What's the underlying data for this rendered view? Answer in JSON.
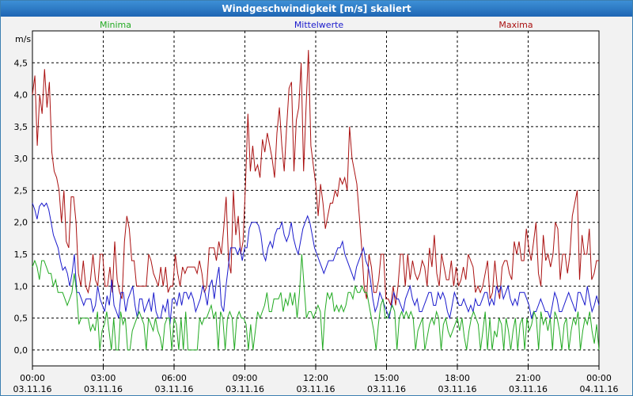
{
  "window": {
    "title": "Windgeschwindigkeit [m/s] skaliert"
  },
  "colors": {
    "min": "#22aa22",
    "avg": "#1a1acc",
    "max": "#aa1111",
    "grid": "#000000"
  },
  "chart_data": {
    "type": "line",
    "title": "Windgeschwindigkeit [m/s] skaliert",
    "ylabel": "m/s",
    "ylim": [
      -0.25,
      5.0
    ],
    "yticks": [
      "0,0",
      "0,5",
      "1,0",
      "1,5",
      "2,0",
      "2,5",
      "3,0",
      "3,5",
      "4,0",
      "4,5"
    ],
    "ytick_values": [
      0,
      0.5,
      1.0,
      1.5,
      2.0,
      2.5,
      3.0,
      3.5,
      4.0,
      4.5
    ],
    "xlim": [
      0,
      24
    ],
    "xticks": [
      {
        "time": "00:00",
        "date": "03.11.16"
      },
      {
        "time": "03:00",
        "date": "03.11.16"
      },
      {
        "time": "06:00",
        "date": "03.11.16"
      },
      {
        "time": "09:00",
        "date": "03.11.16"
      },
      {
        "time": "12:00",
        "date": "03.11.16"
      },
      {
        "time": "15:00",
        "date": "03.11.16"
      },
      {
        "time": "18:00",
        "date": "03.11.16"
      },
      {
        "time": "21:00",
        "date": "03.11.16"
      },
      {
        "time": "00:00",
        "date": "04.11.16"
      }
    ],
    "legend": {
      "min": "Minima",
      "avg": "Mittelwerte",
      "max": "Maxima"
    },
    "series": [
      {
        "name": "Maxima",
        "key": "max",
        "values": [
          4.0,
          4.3,
          3.2,
          4.0,
          3.7,
          4.4,
          3.8,
          4.2,
          3.1,
          2.8,
          2.7,
          2.5,
          2.0,
          2.5,
          1.7,
          1.6,
          2.4,
          2.4,
          2.0,
          1.2,
          1.0,
          1.4,
          1.0,
          0.9,
          1.1,
          1.5,
          1.1,
          1.0,
          1.5,
          1.5,
          1.0,
          1.0,
          1.3,
          0.9,
          1.7,
          1.1,
          0.9,
          0.8,
          1.7,
          2.1,
          1.9,
          1.4,
          1.4,
          1.0,
          1.0,
          1.0,
          1.0,
          1.0,
          1.5,
          1.4,
          1.2,
          1.1,
          1.0,
          1.3,
          1.0,
          1.3,
          0.9,
          1.0,
          1.0,
          1.5,
          1.2,
          1.0,
          1.3,
          1.2,
          1.3,
          1.3,
          1.3,
          1.3,
          1.2,
          1.4,
          1.2,
          0.9,
          1.0,
          1.6,
          1.6,
          1.6,
          1.4,
          1.7,
          1.5,
          1.9,
          2.4,
          1.4,
          1.2,
          2.5,
          1.8,
          2.1,
          1.5,
          1.7,
          2.6,
          3.7,
          2.8,
          3.2,
          2.8,
          2.9,
          2.7,
          3.3,
          3.1,
          3.4,
          3.2,
          3.0,
          2.7,
          3.4,
          3.8,
          3.2,
          2.8,
          3.5,
          4.1,
          4.2,
          2.8,
          3.6,
          3.8,
          4.5,
          2.8,
          3.8,
          4.7,
          3.2,
          2.9,
          2.6,
          2.1,
          2.6,
          2.3,
          1.9,
          2.1,
          2.3,
          2.3,
          2.5,
          2.4,
          2.7,
          2.6,
          2.7,
          2.5,
          3.5,
          3.0,
          2.8,
          2.6,
          2.1,
          1.6,
          1.0,
          0.8,
          1.5,
          1.3,
          0.9,
          0.9,
          1.1,
          1.5,
          1.5,
          0.8,
          0.8,
          0.7,
          1.0,
          0.7,
          1.0,
          1.5,
          1.5,
          1.0,
          1.5,
          1.1,
          1.4,
          1.2,
          1.1,
          1.2,
          1.4,
          1.3,
          1.0,
          1.6,
          1.3,
          1.8,
          1.2,
          1.0,
          1.5,
          1.3,
          1.1,
          1.1,
          1.4,
          1.0,
          1.3,
          1.0,
          1.1,
          1.3,
          1.1,
          1.5,
          1.4,
          1.3,
          0.9,
          1.0,
          0.9,
          1.0,
          1.2,
          1.4,
          0.8,
          0.9,
          1.4,
          1.0,
          0.8,
          1.3,
          1.4,
          1.4,
          1.2,
          1.1,
          1.7,
          1.5,
          1.7,
          1.4,
          1.4,
          1.9,
          1.6,
          1.4,
          1.7,
          2.0,
          1.2,
          1.0,
          1.8,
          1.4,
          1.5,
          1.3,
          1.5,
          2.0,
          1.9,
          1.1,
          1.5,
          1.5,
          1.2,
          1.5,
          2.1,
          2.3,
          2.5,
          1.1,
          1.8,
          1.5,
          1.5,
          1.9,
          1.1,
          1.2,
          1.4,
          1.4
        ]
      },
      {
        "name": "Mittelwerte",
        "key": "avg",
        "values": [
          2.3,
          2.2,
          2.05,
          2.25,
          2.3,
          2.25,
          2.3,
          2.2,
          2.0,
          1.8,
          1.7,
          1.6,
          1.4,
          1.25,
          1.3,
          1.2,
          1.0,
          1.2,
          1.5,
          0.9,
          0.9,
          0.8,
          0.7,
          0.8,
          0.8,
          0.8,
          0.6,
          0.7,
          1.0,
          0.8,
          0.7,
          0.6,
          0.85,
          0.7,
          1.1,
          0.7,
          0.6,
          0.5,
          0.9,
          0.9,
          0.6,
          0.8,
          0.9,
          1.0,
          0.7,
          0.5,
          0.8,
          0.8,
          0.6,
          0.7,
          0.8,
          0.6,
          0.9,
          0.6,
          0.5,
          0.5,
          0.7,
          0.6,
          0.8,
          0.4,
          0.8,
          0.8,
          0.7,
          0.9,
          0.7,
          0.9,
          0.9,
          0.8,
          0.9,
          0.8,
          0.6,
          0.7,
          0.8,
          1.0,
          0.9,
          0.7,
          1.0,
          1.1,
          0.8,
          1.1,
          1.3,
          0.7,
          0.6,
          1.0,
          1.3,
          1.6,
          1.6,
          1.6,
          1.5,
          1.6,
          1.4,
          1.6,
          1.6,
          1.9,
          2.0,
          2.0,
          2.0,
          1.95,
          1.8,
          1.5,
          1.4,
          1.6,
          1.7,
          1.6,
          1.8,
          1.9,
          1.9,
          2.0,
          1.8,
          1.7,
          1.8,
          2.0,
          1.75,
          1.6,
          1.5,
          1.7,
          1.9,
          2.0,
          2.1,
          2.0,
          1.8,
          1.6,
          1.5,
          1.4,
          1.3,
          1.2,
          1.3,
          1.4,
          1.4,
          1.4,
          1.5,
          1.6,
          1.6,
          1.7,
          1.5,
          1.4,
          1.3,
          1.2,
          1.1,
          1.3,
          1.4,
          1.5,
          1.6,
          1.4,
          1.3,
          1.1,
          0.8,
          0.6,
          0.7,
          0.9,
          0.8,
          0.7,
          0.6,
          0.5,
          0.7,
          0.9,
          0.8,
          0.8,
          0.7,
          0.6,
          0.8,
          0.9,
          1.0,
          0.8,
          0.7,
          0.8,
          0.6,
          0.6,
          0.7,
          0.8,
          0.9,
          0.9,
          0.7,
          0.7,
          0.9,
          0.8,
          0.9,
          0.8,
          0.6,
          0.5,
          0.7,
          0.9,
          0.8,
          0.7,
          0.7,
          0.8,
          0.7,
          0.6,
          0.7,
          0.6,
          0.8,
          0.7,
          0.7,
          0.8,
          0.9,
          0.9,
          0.7,
          0.8,
          0.7,
          1.0,
          0.9,
          1.0,
          0.8,
          0.9,
          1.0,
          0.8,
          0.7,
          0.8,
          0.7,
          0.9,
          0.9,
          0.9,
          0.8,
          0.7,
          0.5,
          0.6,
          0.6,
          0.7,
          0.8,
          0.7,
          0.6,
          0.6,
          0.5,
          0.7,
          0.9,
          0.8,
          0.6,
          0.6,
          0.7,
          0.8,
          0.9,
          0.8,
          0.7,
          0.6,
          0.9,
          0.9,
          0.8,
          0.7,
          1.0,
          0.8,
          0.6,
          0.7,
          0.85,
          0.7
        ]
      },
      {
        "name": "Minima",
        "key": "min",
        "values": [
          1.3,
          1.4,
          1.3,
          1.1,
          1.4,
          1.4,
          1.3,
          1.2,
          1.2,
          1.0,
          1.1,
          0.9,
          0.9,
          0.9,
          0.8,
          0.7,
          0.8,
          0.9,
          1.2,
          0.9,
          0.4,
          0.5,
          0.5,
          0.5,
          0.5,
          0.3,
          0.4,
          0.3,
          0.6,
          0.0,
          0.3,
          0.4,
          0.6,
          0.3,
          0.0,
          0.5,
          0.0,
          0.0,
          0.6,
          0.4,
          0.5,
          0.0,
          0.0,
          0.3,
          0.4,
          0.5,
          0.6,
          0.5,
          0.4,
          0.0,
          0.5,
          0.4,
          0.3,
          0.5,
          0.3,
          0.2,
          0.0,
          0.4,
          0.5,
          0.5,
          0.0,
          0.5,
          0.4,
          0.0,
          0.5,
          0.0,
          0.6,
          0.0,
          0.0,
          0.0,
          0.0,
          0.0,
          0.5,
          0.4,
          0.5,
          0.5,
          0.6,
          0.7,
          0.5,
          0.6,
          0.0,
          0.6,
          0.5,
          0.0,
          0.5,
          0.6,
          0.5,
          0.0,
          0.5,
          0.6,
          0.5,
          0.5,
          0.4,
          0.0,
          0.4,
          0.0,
          0.3,
          0.6,
          0.5,
          0.6,
          0.7,
          0.9,
          0.6,
          0.6,
          0.8,
          0.8,
          0.8,
          0.9,
          0.6,
          0.8,
          0.7,
          0.9,
          0.7,
          0.9,
          0.5,
          0.9,
          1.5,
          1.0,
          0.5,
          0.6,
          0.6,
          0.5,
          0.6,
          0.7,
          0.6,
          0.0,
          0.6,
          0.9,
          0.8,
          0.9,
          0.6,
          0.7,
          0.6,
          0.7,
          0.6,
          0.7,
          0.9,
          0.9,
          0.8,
          1.0,
          0.9,
          0.9,
          1.0,
          0.9,
          0.9,
          0.7,
          0.5,
          0.3,
          0.0,
          0.4,
          0.7,
          0.8,
          0.5,
          0.5,
          0.6,
          0.7,
          0.6,
          0.0,
          0.5,
          0.6,
          0.5,
          0.6,
          0.5,
          0.6,
          0.5,
          0.0,
          0.3,
          0.4,
          0.5,
          0.0,
          0.2,
          0.4,
          0.5,
          0.4,
          0.6,
          0.5,
          0.0,
          0.4,
          0.5,
          0.3,
          0.2,
          0.3,
          0.4,
          0.5,
          0.3,
          0.5,
          0.2,
          0.0,
          0.3,
          0.5,
          0.6,
          0.5,
          0.4,
          0.0,
          0.3,
          0.6,
          0.0,
          0.5,
          0.0,
          0.3,
          0.2,
          0.5,
          0.4,
          0.0,
          0.5,
          0.3,
          0.0,
          0.3,
          0.5,
          0.0,
          0.4,
          0.5,
          0.0,
          0.5,
          0.3,
          0.4,
          0.6,
          0.5,
          0.0,
          0.6,
          0.4,
          0.5,
          0.3,
          0.5,
          0.0,
          0.6,
          0.5,
          0.3,
          0.0,
          0.4,
          0.5,
          0.0,
          0.3,
          0.5,
          0.4,
          0.6,
          0.0,
          0.3,
          0.5,
          0.4,
          0.6,
          0.3,
          0.1,
          0.4,
          0.0
        ]
      }
    ]
  }
}
